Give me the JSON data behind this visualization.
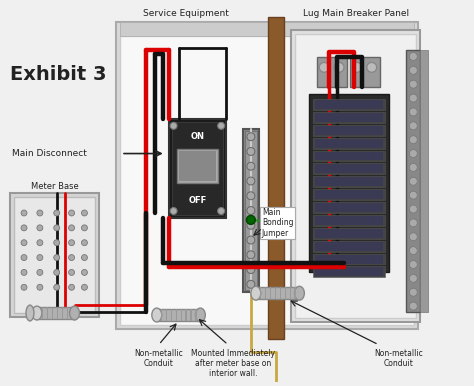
{
  "title": "Exhibit 3",
  "labels": {
    "service_equipment": "Service Equipment",
    "lug_panel": "Lug Main Breaker Panel",
    "main_disconnect": "Main Disconnect",
    "meter_base": "Meter Base",
    "non_metallic_conduit_left": "Non-metallic\nConduit",
    "non_metallic_conduit_right": "Non-metallic\nConduit",
    "main_bonding_jumper": "Main\nBonding\nJumper",
    "mounted_note": "Mounted Immediately\nafter meter base on\ninterior wall."
  },
  "colors": {
    "background": "#f0f0f0",
    "panel_bg": "#f5f5f5",
    "panel_border": "#aaaaaa",
    "panel_inner": "#fafafa",
    "wire_red": "#dd0000",
    "wire_black": "#111111",
    "wire_green": "#228822",
    "wire_bare": "#c8a840",
    "breaker_dark": "#333333",
    "breaker_mid": "#555555",
    "wall_brown": "#8B5A2B",
    "conduit_gray": "#b0b0b0",
    "conduit_light": "#d0d0d0",
    "text_dark": "#222222",
    "white": "#ffffff",
    "light_gray": "#cccccc",
    "silver": "#aaaaaa",
    "dark_silver": "#888888"
  },
  "layout": {
    "fig_w": 4.74,
    "fig_h": 3.86,
    "dpi": 100
  }
}
